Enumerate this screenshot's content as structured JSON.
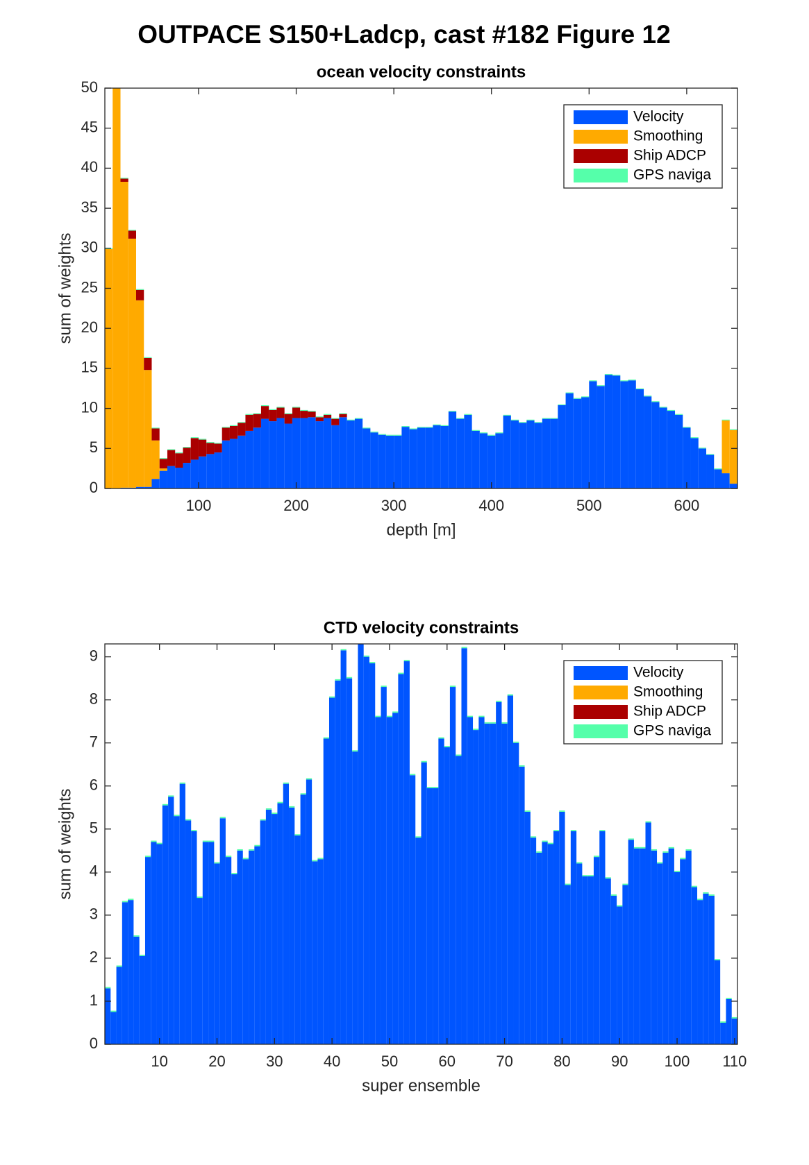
{
  "title": "OUTPACE S150+Ladcp, cast #182  Figure 12",
  "chart_data": [
    {
      "type": "histogram",
      "stacked": true,
      "title": "ocean velocity constraints",
      "xlabel": "depth [m]",
      "ylabel": "sum of weights",
      "bins": [
        4,
        12,
        20,
        28,
        36,
        44,
        52,
        60,
        68,
        76,
        84,
        92,
        100,
        108,
        116,
        124,
        132,
        140,
        148,
        156,
        164,
        172,
        180,
        188,
        196,
        204,
        212,
        220,
        228,
        236,
        244,
        252,
        260,
        268,
        276,
        284,
        292,
        300,
        308,
        316,
        324,
        332,
        340,
        348,
        356,
        364,
        372,
        380,
        388,
        396,
        404,
        412,
        420,
        428,
        436,
        444,
        452,
        460,
        468,
        476,
        484,
        492,
        500,
        508,
        516,
        524,
        532,
        540,
        548,
        556,
        564,
        572,
        580,
        588,
        596,
        604,
        612,
        620,
        628,
        636,
        644,
        652
      ],
      "series": [
        {
          "name": "Velocity",
          "color": "#0055ff",
          "values": [
            0,
            0,
            0.1,
            0.1,
            0.2,
            0.2,
            1.2,
            2.2,
            2.8,
            2.6,
            3.2,
            3.6,
            4.0,
            4.3,
            4.5,
            6.0,
            6.2,
            6.6,
            7.2,
            7.6,
            8.7,
            8.4,
            8.8,
            8.1,
            8.8,
            8.8,
            8.9,
            8.4,
            8.8,
            7.9,
            8.9,
            8.5,
            8.7,
            7.5,
            7.0,
            6.7,
            6.6,
            6.6,
            7.7,
            7.4,
            7.6,
            7.6,
            7.9,
            7.8,
            9.6,
            8.7,
            9.2,
            7.2,
            6.9,
            6.6,
            6.9,
            9.1,
            8.5,
            8.2,
            8.5,
            8.2,
            8.7,
            8.7,
            10.4,
            11.9,
            11.2,
            11.4,
            13.4,
            12.8,
            14.2,
            14.1,
            13.4,
            13.5,
            12.4,
            11.5,
            10.8,
            10.1,
            9.7,
            9.2,
            7.6,
            6.3,
            5.0,
            4.2,
            2.4,
            1.9,
            0.6
          ]
        },
        {
          "name": "Smoothing",
          "color": "#ffaa00",
          "values": [
            29.9,
            50,
            38.2,
            31.1,
            23.3,
            14.6,
            4.8,
            0.3,
            0,
            0,
            0,
            0,
            0,
            0,
            0,
            0,
            0,
            0,
            0,
            0,
            0,
            0,
            0,
            0,
            0,
            0,
            0,
            0,
            0,
            0,
            0,
            0,
            0,
            0,
            0,
            0,
            0,
            0,
            0,
            0,
            0,
            0,
            0,
            0,
            0,
            0,
            0,
            0,
            0,
            0,
            0,
            0,
            0,
            0,
            0,
            0,
            0,
            0,
            0,
            0,
            0,
            0,
            0,
            0,
            0,
            0,
            0,
            0,
            0,
            0,
            0,
            0,
            0,
            0,
            0,
            0,
            0,
            0,
            0,
            6.6,
            6.7
          ]
        },
        {
          "name": "Ship ADCP",
          "color": "#aa0000",
          "values": [
            0,
            0,
            0.4,
            1.0,
            1.3,
            1.5,
            1.5,
            1.2,
            2.0,
            1.8,
            1.9,
            2.7,
            2.1,
            1.4,
            1.1,
            1.6,
            1.6,
            1.6,
            2.0,
            1.7,
            1.6,
            1.4,
            1.3,
            1.2,
            1.3,
            0.9,
            0.7,
            0.5,
            0.4,
            0.8,
            0.4,
            0,
            0,
            0,
            0,
            0,
            0,
            0,
            0,
            0,
            0,
            0,
            0,
            0,
            0,
            0,
            0,
            0,
            0,
            0,
            0,
            0,
            0,
            0,
            0,
            0,
            0,
            0,
            0,
            0,
            0,
            0,
            0,
            0,
            0,
            0,
            0,
            0,
            0,
            0,
            0,
            0,
            0,
            0,
            0,
            0,
            0,
            0,
            0,
            0,
            0
          ]
        },
        {
          "name": "GPS naviga",
          "color": "#55ffaa",
          "values": [
            0.1,
            0.1,
            0.1,
            0.1,
            0.1,
            0.1,
            0.1,
            0.1,
            0.1,
            0.1,
            0.1,
            0.1,
            0.1,
            0.1,
            0.1,
            0.1,
            0.1,
            0.1,
            0.1,
            0.1,
            0.1,
            0.1,
            0.1,
            0.1,
            0.1,
            0.1,
            0.1,
            0.1,
            0.1,
            0.1,
            0.1,
            0.1,
            0.1,
            0.1,
            0.1,
            0.1,
            0.1,
            0.1,
            0.1,
            0.1,
            0.1,
            0.1,
            0.1,
            0.1,
            0.1,
            0.1,
            0.1,
            0.1,
            0.1,
            0.1,
            0.1,
            0.1,
            0.1,
            0.1,
            0.1,
            0.1,
            0.1,
            0.1,
            0.1,
            0.1,
            0.1,
            0.1,
            0.1,
            0.1,
            0.1,
            0.1,
            0.1,
            0.1,
            0.1,
            0.1,
            0.1,
            0.1,
            0.1,
            0.1,
            0.1,
            0.1,
            0.1,
            0.1,
            0.1,
            0.1,
            0.1
          ]
        }
      ],
      "xlim": [
        4,
        652
      ],
      "ylim": [
        0,
        50
      ],
      "xticks": [
        100,
        200,
        300,
        400,
        500,
        600
      ],
      "yticks": [
        0,
        5,
        10,
        15,
        20,
        25,
        30,
        35,
        40,
        45,
        50
      ],
      "legend": "upper right"
    },
    {
      "type": "bar",
      "stacked": true,
      "title": "CTD velocity constraints",
      "xlabel": "super ensemble",
      "ylabel": "sum of weights",
      "x": [
        1,
        2,
        3,
        4,
        5,
        6,
        7,
        8,
        9,
        10,
        11,
        12,
        13,
        14,
        15,
        16,
        17,
        18,
        19,
        20,
        21,
        22,
        23,
        24,
        25,
        26,
        27,
        28,
        29,
        30,
        31,
        32,
        33,
        34,
        35,
        36,
        37,
        38,
        39,
        40,
        41,
        42,
        43,
        44,
        45,
        46,
        47,
        48,
        49,
        50,
        51,
        52,
        53,
        54,
        55,
        56,
        57,
        58,
        59,
        60,
        61,
        62,
        63,
        64,
        65,
        66,
        67,
        68,
        69,
        70,
        71,
        72,
        73,
        74,
        75,
        76,
        77,
        78,
        79,
        80,
        81,
        82,
        83,
        84,
        85,
        86,
        87,
        88,
        89,
        90,
        91,
        92,
        93,
        94,
        95,
        96,
        97,
        98,
        99,
        100,
        101,
        102,
        103,
        104,
        105,
        106,
        107,
        108,
        109,
        110
      ],
      "series": [
        {
          "name": "Velocity",
          "color": "#0055ff",
          "values": [
            1.3,
            0.75,
            1.8,
            3.3,
            3.35,
            2.5,
            2.05,
            4.35,
            4.7,
            4.65,
            5.55,
            5.75,
            5.3,
            6.05,
            5.2,
            4.95,
            3.4,
            4.7,
            4.7,
            4.2,
            5.25,
            4.35,
            3.95,
            4.5,
            4.3,
            4.5,
            4.6,
            5.2,
            5.45,
            5.35,
            5.6,
            6.05,
            5.5,
            4.85,
            5.8,
            6.15,
            4.25,
            4.3,
            7.1,
            8.05,
            8.45,
            9.15,
            8.5,
            6.8,
            9.3,
            9.0,
            8.85,
            7.6,
            8.3,
            7.6,
            7.7,
            8.6,
            8.9,
            6.25,
            4.8,
            6.55,
            5.95,
            5.95,
            7.1,
            6.9,
            8.3,
            6.7,
            9.2,
            7.6,
            7.3,
            7.6,
            7.45,
            7.45,
            7.95,
            7.45,
            8.1,
            7.0,
            6.45,
            5.4,
            4.8,
            4.45,
            4.7,
            4.65,
            4.95,
            5.4,
            3.7,
            4.95,
            4.2,
            3.9,
            3.9,
            4.35,
            4.95,
            3.85,
            3.45,
            3.2,
            3.7,
            4.75,
            4.55,
            4.55,
            5.15,
            4.5,
            4.2,
            4.45,
            4.55,
            4.0,
            4.3,
            4.5,
            3.65,
            3.35,
            3.5,
            3.45,
            1.95,
            0.5,
            1.05,
            0.6
          ]
        },
        {
          "name": "Smoothing",
          "color": "#ffaa00",
          "values": [
            0,
            0,
            0,
            0,
            0,
            0,
            0,
            0,
            0,
            0,
            0,
            0,
            0,
            0,
            0,
            0,
            0,
            0,
            0,
            0,
            0,
            0,
            0,
            0,
            0,
            0,
            0,
            0,
            0,
            0,
            0,
            0,
            0,
            0,
            0,
            0,
            0,
            0,
            0,
            0,
            0,
            0,
            0,
            0,
            0,
            0,
            0,
            0,
            0,
            0,
            0,
            0,
            0,
            0,
            0,
            0,
            0,
            0,
            0,
            0,
            0,
            0,
            0,
            0,
            0,
            0,
            0,
            0,
            0,
            0,
            0,
            0,
            0,
            0,
            0,
            0,
            0,
            0,
            0,
            0,
            0,
            0,
            0,
            0,
            0,
            0,
            0,
            0,
            0,
            0,
            0,
            0,
            0,
            0,
            0,
            0,
            0,
            0,
            0,
            0,
            0,
            0,
            0,
            0,
            0,
            0,
            0,
            0,
            0,
            0
          ]
        },
        {
          "name": "Ship ADCP",
          "color": "#aa0000",
          "values": [
            0,
            0,
            0,
            0,
            0,
            0,
            0,
            0,
            0,
            0,
            0,
            0,
            0,
            0,
            0,
            0,
            0,
            0,
            0,
            0,
            0,
            0,
            0,
            0,
            0,
            0,
            0,
            0,
            0,
            0,
            0,
            0,
            0,
            0,
            0,
            0,
            0,
            0,
            0,
            0,
            0,
            0,
            0,
            0,
            0,
            0,
            0,
            0,
            0,
            0,
            0,
            0,
            0,
            0,
            0,
            0,
            0,
            0,
            0,
            0,
            0,
            0,
            0,
            0,
            0,
            0,
            0,
            0,
            0,
            0,
            0,
            0,
            0,
            0,
            0,
            0,
            0,
            0,
            0,
            0,
            0,
            0,
            0,
            0,
            0,
            0,
            0,
            0,
            0,
            0,
            0,
            0,
            0,
            0,
            0,
            0,
            0,
            0,
            0,
            0,
            0,
            0,
            0,
            0,
            0,
            0,
            0,
            0,
            0,
            0
          ]
        },
        {
          "name": "GPS naviga",
          "color": "#55ffaa",
          "values": [
            0.03,
            0.03,
            0.03,
            0.03,
            0.03,
            0.03,
            0.03,
            0.03,
            0.03,
            0.03,
            0.03,
            0.03,
            0.03,
            0.03,
            0.03,
            0.03,
            0.03,
            0.03,
            0.03,
            0.03,
            0.03,
            0.03,
            0.03,
            0.03,
            0.03,
            0.03,
            0.03,
            0.03,
            0.03,
            0.03,
            0.03,
            0.03,
            0.03,
            0.03,
            0.03,
            0.03,
            0.03,
            0.03,
            0.03,
            0.03,
            0.03,
            0.03,
            0.03,
            0.03,
            0.03,
            0.03,
            0.03,
            0.03,
            0.03,
            0.03,
            0.03,
            0.03,
            0.03,
            0.03,
            0.03,
            0.03,
            0.03,
            0.03,
            0.03,
            0.03,
            0.03,
            0.03,
            0.03,
            0.03,
            0.03,
            0.03,
            0.03,
            0.03,
            0.03,
            0.03,
            0.03,
            0.03,
            0.03,
            0.03,
            0.03,
            0.03,
            0.03,
            0.03,
            0.03,
            0.03,
            0.03,
            0.03,
            0.03,
            0.03,
            0.03,
            0.03,
            0.03,
            0.03,
            0.03,
            0.03,
            0.03,
            0.03,
            0.03,
            0.03,
            0.03,
            0.03,
            0.03,
            0.03,
            0.03,
            0.03,
            0.03,
            0.03,
            0.03,
            0.03,
            0.03,
            0.03,
            0.03,
            0.03,
            0.03,
            0.03
          ]
        }
      ],
      "xlim": [
        0.5,
        110.5
      ],
      "ylim": [
        0,
        9.3
      ],
      "xticks": [
        10,
        20,
        30,
        40,
        50,
        60,
        70,
        80,
        90,
        100,
        110
      ],
      "yticks": [
        0,
        1,
        2,
        3,
        4,
        5,
        6,
        7,
        8,
        9
      ],
      "legend": "upper right"
    }
  ]
}
